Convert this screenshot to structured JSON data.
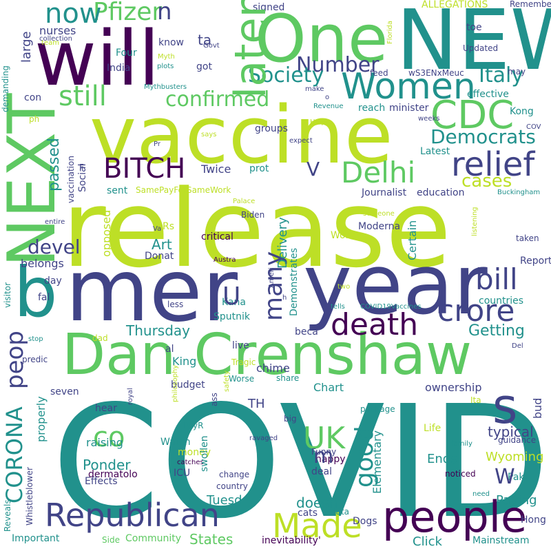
{
  "words": [
    {
      "text": "COVID",
      "color": "#21918c",
      "rotate": false
    },
    {
      "text": "release",
      "color": "#bddf26",
      "rotate": false
    },
    {
      "text": "vaccine",
      "color": "#bddf26",
      "rotate": false
    },
    {
      "text": "year",
      "color": "#414487",
      "rotate": false
    },
    {
      "text": "mer",
      "color": "#414487",
      "rotate": false
    },
    {
      "text": "NEW",
      "color": "#21918c",
      "rotate": false
    },
    {
      "text": "will",
      "color": "#440154",
      "rotate": false
    },
    {
      "text": "One",
      "color": "#5ec962",
      "rotate": false
    },
    {
      "text": "Dan Crenshaw",
      "color": "#5ec962",
      "rotate": false
    },
    {
      "text": "b",
      "color": "#21918c",
      "rotate": false
    },
    {
      "text": "NEXT",
      "color": "#5ec962",
      "rotate": true
    },
    {
      "text": "people",
      "color": "#440154",
      "rotate": false
    },
    {
      "text": "Republican",
      "color": "#414487",
      "rotate": false
    },
    {
      "text": "Women",
      "color": "#21918c",
      "rotate": false
    },
    {
      "text": "s",
      "color": "#414487",
      "rotate": false
    },
    {
      "text": "CDC",
      "color": "#5ec962",
      "rotate": false
    },
    {
      "text": "death",
      "color": "#440154",
      "rotate": false
    },
    {
      "text": "Made",
      "color": "#bddf26",
      "rotate": false
    },
    {
      "text": "Delhi",
      "color": "#5ec962",
      "rotate": false
    },
    {
      "text": "relief",
      "color": "#414487",
      "rotate": false
    },
    {
      "text": "BITCH",
      "color": "#440154",
      "rotate": false
    },
    {
      "text": "crore",
      "color": "#414487",
      "rotate": false
    },
    {
      "text": "bill",
      "color": "#414487",
      "rotate": false
    },
    {
      "text": "UK",
      "color": "#5ec962",
      "rotate": false
    },
    {
      "text": "Pfizer",
      "color": "#5ec962",
      "rotate": false
    },
    {
      "text": "now",
      "color": "#21918c",
      "rotate": false
    },
    {
      "text": "Number",
      "color": "#414487",
      "rotate": false
    },
    {
      "text": "Society",
      "color": "#21918c",
      "rotate": false
    },
    {
      "text": "still",
      "color": "#5ec962",
      "rotate": false
    },
    {
      "text": "Democrats",
      "color": "#21918c",
      "rotate": false
    },
    {
      "text": "confirmed",
      "color": "#5ec962",
      "rotate": false
    },
    {
      "text": "Italy",
      "color": "#21918c",
      "rotate": false
    },
    {
      "text": "cases",
      "color": "#bddf26",
      "rotate": false
    },
    {
      "text": "co",
      "color": "#5ec962",
      "rotate": false
    },
    {
      "text": "devel",
      "color": "#414487",
      "rotate": false
    },
    {
      "text": "Getting",
      "color": "#21918c",
      "rotate": false
    },
    {
      "text": "Thursday",
      "color": "#21918c",
      "rotate": false
    },
    {
      "text": "Wyoming",
      "color": "#bddf26",
      "rotate": false
    },
    {
      "text": "Ends",
      "color": "#21918c",
      "rotate": false
    },
    {
      "text": "Paying",
      "color": "#21918c",
      "rotate": false
    },
    {
      "text": "Ponder",
      "color": "#21918c",
      "rotate": false
    },
    {
      "text": "Art",
      "color": "#21918c",
      "rotate": false
    },
    {
      "text": "King",
      "color": "#21918c",
      "rotate": false
    },
    {
      "text": "raising",
      "color": "#21918c",
      "rotate": false
    },
    {
      "text": "typical",
      "color": "#414487",
      "rotate": false
    },
    {
      "text": "doesn",
      "color": "#21918c",
      "rotate": false
    },
    {
      "text": "Tuesd",
      "color": "#21918c",
      "rotate": false
    },
    {
      "text": "States",
      "color": "#5ec962",
      "rotate": false
    },
    {
      "text": "Journalist",
      "color": "#414487",
      "rotate": false
    },
    {
      "text": "education",
      "color": "#414487",
      "rotate": false
    },
    {
      "text": "Moderna",
      "color": "#414487",
      "rotate": false
    },
    {
      "text": "belongs",
      "color": "#414487",
      "rotate": false
    },
    {
      "text": "Donat",
      "color": "#414487",
      "rotate": false
    },
    {
      "text": "budget",
      "color": "#414487",
      "rotate": false
    },
    {
      "text": "chime",
      "color": "#414487",
      "rotate": false
    },
    {
      "text": "Chart",
      "color": "#21918c",
      "rotate": false
    },
    {
      "text": "ownership",
      "color": "#414487",
      "rotate": false
    },
    {
      "text": "Report",
      "color": "#414487",
      "rotate": false
    },
    {
      "text": "countries",
      "color": "#21918c",
      "rotate": false
    },
    {
      "text": "Work",
      "color": "#bddf26",
      "rotate": false
    },
    {
      "text": "critical",
      "color": "#440154",
      "rotate": false
    },
    {
      "text": "groups",
      "color": "#414487",
      "rotate": false
    },
    {
      "text": "minister",
      "color": "#414487",
      "rotate": false
    },
    {
      "text": "effective",
      "color": "#21918c",
      "rotate": false
    },
    {
      "text": "Kong",
      "color": "#21918c",
      "rotate": false
    },
    {
      "text": "nurses",
      "color": "#414487",
      "rotate": false
    },
    {
      "text": "India",
      "color": "#414487",
      "rotate": false
    },
    {
      "text": "Four",
      "color": "#21918c",
      "rotate": false
    },
    {
      "text": "got",
      "color": "#414487",
      "rotate": false
    },
    {
      "text": "know",
      "color": "#414487",
      "rotate": false
    },
    {
      "text": "Twice",
      "color": "#414487",
      "rotate": false
    },
    {
      "text": "sent",
      "color": "#21918c",
      "rotate": false
    },
    {
      "text": "Sputnik",
      "color": "#21918c",
      "rotate": false
    },
    {
      "text": "Kana",
      "color": "#21918c",
      "rotate": false
    },
    {
      "text": "beca",
      "color": "#414487",
      "rotate": false
    },
    {
      "text": "live",
      "color": "#414487",
      "rotate": false
    },
    {
      "text": "hear",
      "color": "#414487",
      "rotate": false
    },
    {
      "text": "seven",
      "color": "#414487",
      "rotate": false
    },
    {
      "text": "money",
      "color": "#bddf26",
      "rotate": false
    },
    {
      "text": "ICU",
      "color": "#414487",
      "rotate": false
    },
    {
      "text": "dermatolo",
      "color": "#440154",
      "rotate": false
    },
    {
      "text": "Effects",
      "color": "#414487",
      "rotate": false
    },
    {
      "text": "Watch",
      "color": "#21918c",
      "rotate": false
    },
    {
      "text": "deal",
      "color": "#414487",
      "rotate": false
    },
    {
      "text": "cats",
      "color": "#414487",
      "rotate": false
    },
    {
      "text": "happy",
      "color": "#440154",
      "rotate": false
    },
    {
      "text": "Pak",
      "color": "#21918c",
      "rotate": false
    },
    {
      "text": "Life",
      "color": "#bddf26",
      "rotate": false
    },
    {
      "text": "Hong",
      "color": "#414487",
      "rotate": false
    },
    {
      "text": "Dogs",
      "color": "#414487",
      "rotate": false
    },
    {
      "text": "Click",
      "color": "#21918c",
      "rotate": false
    },
    {
      "text": "Mainstream",
      "color": "#21918c",
      "rotate": false
    },
    {
      "text": "Important",
      "color": "#21918c",
      "rotate": false
    },
    {
      "text": "Community",
      "color": "#5ec962",
      "rotate": false
    },
    {
      "text": "Side",
      "color": "#5ec962",
      "rotate": false
    },
    {
      "text": "inevitability'",
      "color": "#440154",
      "rotate": false
    },
    {
      "text": "data",
      "color": "#21918c",
      "rotate": false
    },
    {
      "text": "PayR",
      "color": "#21918c",
      "rotate": false
    },
    {
      "text": "TH",
      "color": "#414487",
      "rotate": false
    },
    {
      "text": "big",
      "color": "#414487",
      "rotate": false
    },
    {
      "text": "Funny",
      "color": "#414487",
      "rotate": false
    },
    {
      "text": "package",
      "color": "#21918c",
      "rotate": false
    },
    {
      "text": "guidance",
      "color": "#414487",
      "rotate": false
    },
    {
      "text": "family",
      "color": "#21918c",
      "rotate": false
    },
    {
      "text": "noticed",
      "color": "#440154",
      "rotate": false
    },
    {
      "text": "need",
      "color": "#21918c",
      "rotate": false
    },
    {
      "text": "Ita",
      "color": "#bddf26",
      "rotate": false
    },
    {
      "text": "taken",
      "color": "#414487",
      "rotate": false
    },
    {
      "text": "Buckingham",
      "color": "#21918c",
      "rotate": false
    },
    {
      "text": "Palace",
      "color": "#bddf26",
      "rotate": false
    },
    {
      "text": "Biden",
      "color": "#414487",
      "rotate": false
    },
    {
      "text": "someone",
      "color": "#bddf26",
      "rotate": false
    },
    {
      "text": "Austra",
      "color": "#440154",
      "rotate": false
    },
    {
      "text": "tells",
      "color": "#21918c",
      "rotate": false
    },
    {
      "text": "COVID19Vaccines",
      "color": "#21918c",
      "rotate": false
    },
    {
      "text": "Del",
      "color": "#414487",
      "rotate": false
    },
    {
      "text": "less",
      "color": "#414487",
      "rotate": false
    },
    {
      "text": "day",
      "color": "#414487",
      "rotate": false
    },
    {
      "text": "dad",
      "color": "#bddf26",
      "rotate": false
    },
    {
      "text": "stop",
      "color": "#21918c",
      "rotate": false
    },
    {
      "text": "predic",
      "color": "#414487",
      "rotate": false
    },
    {
      "text": "Tragic",
      "color": "#bddf26",
      "rotate": false
    },
    {
      "text": "Worse",
      "color": "#21918c",
      "rotate": false
    },
    {
      "text": "share",
      "color": "#21918c",
      "rotate": false
    },
    {
      "text": "catches",
      "color": "#440154",
      "rotate": false
    },
    {
      "text": "change",
      "color": "#414487",
      "rotate": false
    },
    {
      "text": "country",
      "color": "#414487",
      "rotate": false
    },
    {
      "text": "ravaged",
      "color": "#414487",
      "rotate": false
    },
    {
      "text": "Pr",
      "color": "#414487",
      "rotate": false
    },
    {
      "text": "says",
      "color": "#bddf26",
      "rotate": false
    },
    {
      "text": "Govt",
      "color": "#414487",
      "rotate": false
    },
    {
      "text": "Myth",
      "color": "#bddf26",
      "rotate": false
    },
    {
      "text": "plots",
      "color": "#21918c",
      "rotate": false
    },
    {
      "text": "Mythbusters",
      "color": "#21918c",
      "rotate": false
    },
    {
      "text": "team",
      "color": "#bddf26",
      "rotate": false
    },
    {
      "text": "collection",
      "color": "#414487",
      "rotate": false
    },
    {
      "text": "signed",
      "color": "#414487",
      "rotate": false
    },
    {
      "text": "ALLEGATIONS",
      "color": "#bddf26",
      "rotate": false
    },
    {
      "text": "Remember",
      "color": "#414487",
      "rotate": false
    },
    {
      "text": "toe",
      "color": "#414487",
      "rotate": false
    },
    {
      "text": "Updated",
      "color": "#414487",
      "rotate": false
    },
    {
      "text": "feed",
      "color": "#414487",
      "rotate": false
    },
    {
      "text": "wS3ENxMeuc",
      "color": "#414487",
      "rotate": false
    },
    {
      "text": "make",
      "color": "#414487",
      "rotate": false
    },
    {
      "text": "Revenue",
      "color": "#21918c",
      "rotate": false
    },
    {
      "text": "reach",
      "color": "#21918c",
      "rotate": false
    },
    {
      "text": "weeks",
      "color": "#414487",
      "rotate": false
    },
    {
      "text": "COV",
      "color": "#414487",
      "rotate": false
    },
    {
      "text": "expect",
      "color": "#414487",
      "rotate": false
    },
    {
      "text": "Help",
      "color": "#bddf26",
      "rotate": false
    },
    {
      "text": "Latest",
      "color": "#21918c",
      "rotate": false
    },
    {
      "text": "prot",
      "color": "#21918c",
      "rotate": false
    },
    {
      "text": "SamePayForSameWork",
      "color": "#bddf26",
      "rotate": false
    },
    {
      "text": "entire",
      "color": "#414487",
      "rotate": false
    },
    {
      "text": "Va",
      "color": "#414487",
      "rotate": false
    },
    {
      "text": "Rs",
      "color": "#bddf26",
      "rotate": false
    },
    {
      "text": "con",
      "color": "#414487",
      "rotate": false
    },
    {
      "text": "ph",
      "color": "#bddf26",
      "rotate": false
    },
    {
      "text": "F",
      "color": "#414487",
      "rotate": false
    },
    {
      "text": "fal",
      "color": "#414487",
      "rotate": false
    },
    {
      "text": "al",
      "color": "#414487",
      "rotate": false
    },
    {
      "text": "h",
      "color": "#414487",
      "rotate": false
    },
    {
      "text": "o",
      "color": "#414487",
      "rotate": false
    },
    {
      "text": "ta",
      "color": "#414487",
      "rotate": false
    },
    {
      "text": "two",
      "color": "#bddf26",
      "rotate": false
    },
    {
      "text": "may",
      "color": "#414487",
      "rotate": false
    },
    {
      "text": "m",
      "color": "#414487",
      "rotate": false
    },
    {
      "text": "W",
      "color": "#414487",
      "rotate": false
    },
    {
      "text": "V",
      "color": "#414487",
      "rotate": false
    },
    {
      "text": "U",
      "color": "#414487",
      "rotate": false
    },
    {
      "text": "n",
      "color": "#414487",
      "rotate": false
    },
    {
      "text": "later",
      "color": "#5ec962",
      "rotate": true
    },
    {
      "text": "peop",
      "color": "#414487",
      "rotate": true
    },
    {
      "text": "CORONA",
      "color": "#21918c",
      "rotate": true
    },
    {
      "text": "many",
      "color": "#414487",
      "rotate": true
    },
    {
      "text": "good",
      "color": "#21918c",
      "rotate": true
    },
    {
      "text": "passed",
      "color": "#21918c",
      "rotate": true
    },
    {
      "text": "large",
      "color": "#414487",
      "rotate": true
    },
    {
      "text": "Delivery",
      "color": "#21918c",
      "rotate": true
    },
    {
      "text": "Demonstrates",
      "color": "#21918c",
      "rotate": true
    },
    {
      "text": "Elementary",
      "color": "#21918c",
      "rotate": true
    },
    {
      "text": "Certain",
      "color": "#21918c",
      "rotate": true
    },
    {
      "text": "opposed",
      "color": "#bddf26",
      "rotate": true
    },
    {
      "text": "properly",
      "color": "#21918c",
      "rotate": true
    },
    {
      "text": "swollen",
      "color": "#21918c",
      "rotate": true
    },
    {
      "text": "vaccination",
      "color": "#414487",
      "rotate": true
    },
    {
      "text": "Social",
      "color": "#414487",
      "rotate": true
    },
    {
      "text": "demanding",
      "color": "#21918c",
      "rotate": true
    },
    {
      "text": "visitor",
      "color": "#21918c",
      "rotate": true
    },
    {
      "text": "Whistleblower",
      "color": "#414487",
      "rotate": true
    },
    {
      "text": "Reveals",
      "color": "#21918c",
      "rotate": true
    },
    {
      "text": "philosophy",
      "color": "#bddf26",
      "rotate": true
    },
    {
      "text": "royal",
      "color": "#414487",
      "rotate": true
    },
    {
      "text": "ass",
      "color": "#414487",
      "rotate": true
    },
    {
      "text": "safety",
      "color": "#bddf26",
      "rotate": true
    },
    {
      "text": "Ameri",
      "color": "#414487",
      "rotate": true
    },
    {
      "text": "listening",
      "color": "#bddf26",
      "rotate": true
    },
    {
      "text": "Florida",
      "color": "#bddf26",
      "rotate": true
    },
    {
      "text": "bud",
      "color": "#414487",
      "rotate": true
    }
  ]
}
